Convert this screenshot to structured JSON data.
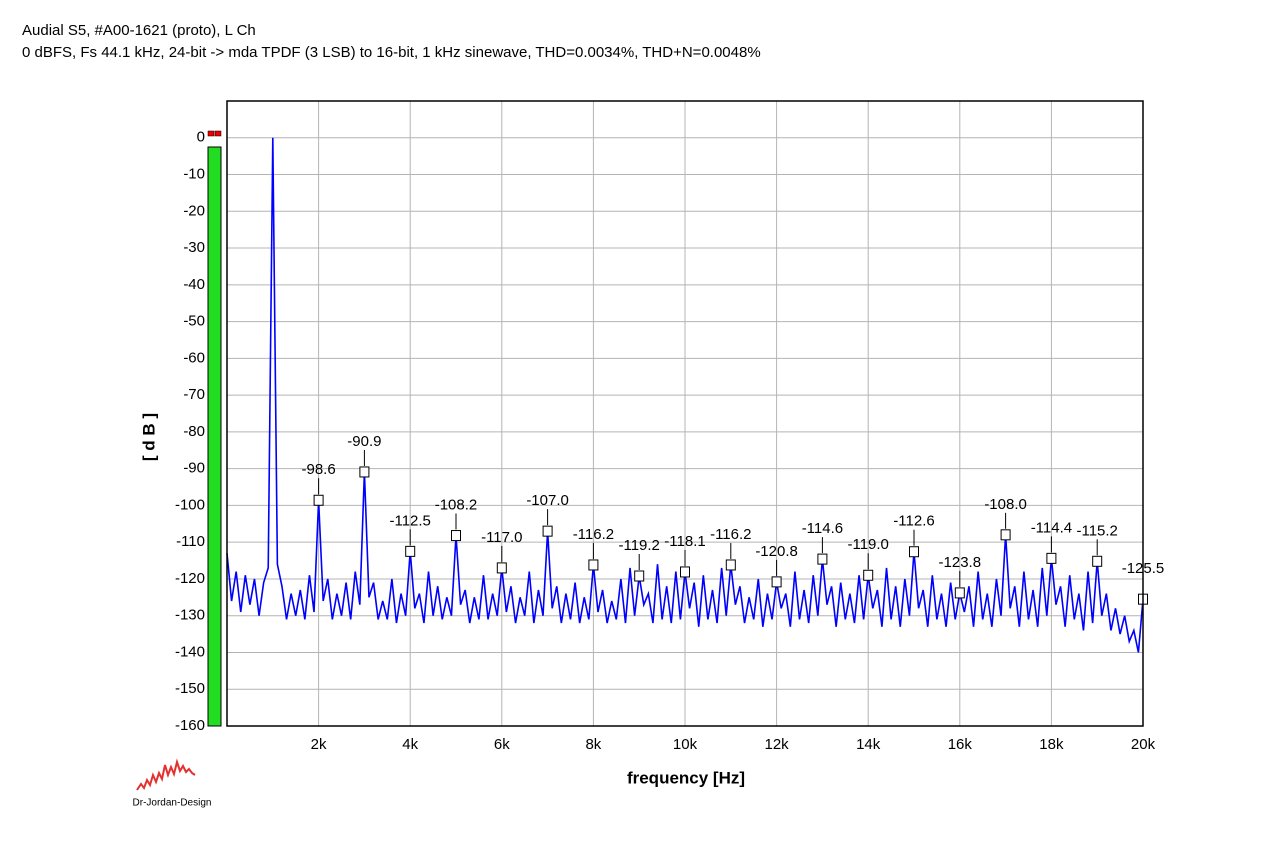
{
  "chart_data": {
    "type": "line",
    "title": "Audial S5, #A00-1621 (proto), L Ch",
    "subtitle": "0 dBFS, Fs 44.1 kHz, 24-bit -> mda TPDF (3 LSB) to 16-bit, 1 kHz sinewave, THD=0.0034%, THD+N=0.0048%",
    "xlabel": "frequency [Hz]",
    "ylabel": "[ d B ]",
    "credit": "Dr-Jordan-Design",
    "xlim": [
      0,
      20000
    ],
    "ylim": [
      -160,
      10
    ],
    "grid": true,
    "xticks": [
      {
        "value": 2000,
        "label": "2k"
      },
      {
        "value": 4000,
        "label": "4k"
      },
      {
        "value": 6000,
        "label": "6k"
      },
      {
        "value": 8000,
        "label": "8k"
      },
      {
        "value": 10000,
        "label": "10k"
      },
      {
        "value": 12000,
        "label": "12k"
      },
      {
        "value": 14000,
        "label": "14k"
      },
      {
        "value": 16000,
        "label": "16k"
      },
      {
        "value": 18000,
        "label": "18k"
      },
      {
        "value": 20000,
        "label": "20k"
      }
    ],
    "yticks": [
      -160,
      -150,
      -140,
      -130,
      -120,
      -110,
      -100,
      -90,
      -80,
      -70,
      -60,
      -50,
      -40,
      -30,
      -20,
      -10,
      0
    ],
    "x": [
      0,
      100,
      200,
      300,
      400,
      500,
      600,
      700,
      800,
      900,
      1000,
      1100,
      1200,
      1300,
      1400,
      1500,
      1600,
      1700,
      1800,
      1900,
      2000,
      2100,
      2200,
      2300,
      2400,
      2500,
      2600,
      2700,
      2800,
      2900,
      3000,
      3100,
      3200,
      3300,
      3400,
      3500,
      3600,
      3700,
      3800,
      3900,
      4000,
      4100,
      4200,
      4300,
      4400,
      4500,
      4600,
      4700,
      4800,
      4900,
      5000,
      5100,
      5200,
      5300,
      5400,
      5500,
      5600,
      5700,
      5800,
      5900,
      6000,
      6100,
      6200,
      6300,
      6400,
      6500,
      6600,
      6700,
      6800,
      6900,
      7000,
      7100,
      7200,
      7300,
      7400,
      7500,
      7600,
      7700,
      7800,
      7900,
      8000,
      8100,
      8200,
      8300,
      8400,
      8500,
      8600,
      8700,
      8800,
      8900,
      9000,
      9100,
      9200,
      9300,
      9400,
      9500,
      9600,
      9700,
      9800,
      9900,
      10000,
      10100,
      10200,
      10300,
      10400,
      10500,
      10600,
      10700,
      10800,
      10900,
      11000,
      11100,
      11200,
      11300,
      11400,
      11500,
      11600,
      11700,
      11800,
      11900,
      12000,
      12100,
      12200,
      12300,
      12400,
      12500,
      12600,
      12700,
      12800,
      12900,
      13000,
      13100,
      13200,
      13300,
      13400,
      13500,
      13600,
      13700,
      13800,
      13900,
      14000,
      14100,
      14200,
      14300,
      14400,
      14500,
      14600,
      14700,
      14800,
      14900,
      15000,
      15100,
      15200,
      15300,
      15400,
      15500,
      15600,
      15700,
      15800,
      15900,
      16000,
      16100,
      16200,
      16300,
      16400,
      16500,
      16600,
      16700,
      16800,
      16900,
      17000,
      17100,
      17200,
      17300,
      17400,
      17500,
      17600,
      17700,
      17800,
      17900,
      18000,
      18100,
      18200,
      18300,
      18400,
      18500,
      18600,
      18700,
      18800,
      18900,
      19000,
      19100,
      19200,
      19300,
      19400,
      19500,
      19600,
      19700,
      19800,
      19900,
      20000
    ],
    "series": [
      {
        "color": "#0000ff",
        "values": [
          -113,
          -126,
          -118,
          -129,
          -119,
          -127,
          -120,
          -130,
          -121,
          -117,
          0,
          -116,
          -122,
          -131,
          -124,
          -130,
          -123,
          -131,
          -119,
          -129,
          -98.6,
          -126,
          -120,
          -131,
          -124,
          -130,
          -121,
          -131,
          -118,
          -127,
          -90.9,
          -125,
          -121,
          -131,
          -126,
          -131,
          -120,
          -132,
          -124,
          -130,
          -112.5,
          -128,
          -124,
          -132,
          -118,
          -130,
          -122,
          -131,
          -125,
          -130,
          -108.2,
          -127,
          -123,
          -132,
          -125,
          -131,
          -119,
          -131,
          -124,
          -130,
          -117,
          -129,
          -122,
          -132,
          -125,
          -130,
          -118,
          -132,
          -123,
          -130,
          -107,
          -128,
          -122,
          -132,
          -124,
          -131,
          -121,
          -132,
          -125,
          -131,
          -116.2,
          -129,
          -123,
          -132,
          -126,
          -131,
          -120,
          -132,
          -117,
          -130,
          -119.2,
          -127,
          -124,
          -132,
          -116,
          -131,
          -122,
          -132,
          -118,
          -131,
          -118.1,
          -128,
          -121,
          -133,
          -119,
          -131,
          -123,
          -132,
          -117,
          -130,
          -116.2,
          -127,
          -122,
          -132,
          -125,
          -131,
          -120,
          -133,
          -124,
          -131,
          -120.8,
          -128,
          -124,
          -133,
          -118,
          -131,
          -123,
          -132,
          -119,
          -130,
          -114.6,
          -127,
          -122,
          -133,
          -121,
          -131,
          -124,
          -132,
          -119,
          -131,
          -119,
          -128,
          -123,
          -133,
          -117,
          -131,
          -122,
          -133,
          -120,
          -130,
          -112.6,
          -128,
          -123,
          -133,
          -119,
          -131,
          -124,
          -133,
          -121,
          -131,
          -123.8,
          -129,
          -122,
          -133,
          -118,
          -131,
          -124,
          -133,
          -120,
          -130,
          -108,
          -128,
          -122,
          -133,
          -118,
          -131,
          -123,
          -133,
          -117,
          -130,
          -114.4,
          -127,
          -122,
          -133,
          -119,
          -131,
          -124,
          -134,
          -118,
          -132,
          -115.2,
          -130,
          -124,
          -134,
          -128,
          -135,
          -130,
          -137,
          -134,
          -140,
          -125.5
        ]
      }
    ],
    "markers": {
      "x": [
        2000,
        3000,
        4000,
        5000,
        6000,
        7000,
        8000,
        9000,
        10000,
        11000,
        12000,
        13000,
        14000,
        15000,
        16000,
        17000,
        18000,
        19000,
        20000
      ],
      "values": [
        -98.6,
        -90.9,
        -112.5,
        -108.2,
        -117,
        -107,
        -116.2,
        -119.2,
        -118.1,
        -116.2,
        -120.8,
        -114.6,
        -119,
        -112.6,
        -123.8,
        -108,
        -114.4,
        -115.2,
        -125.5
      ],
      "value_labels": [
        "-98.6",
        "-90.9",
        "-112.5",
        "-108.2",
        "-117.0",
        "-107.0",
        "-116.2",
        "-119.2",
        "-118.1",
        "-116.2",
        "-120.8",
        "-114.6",
        "-119.0",
        "-112.6",
        "-123.8",
        "-108.0",
        "-114.4",
        "-115.2",
        "-125.5"
      ]
    }
  }
}
